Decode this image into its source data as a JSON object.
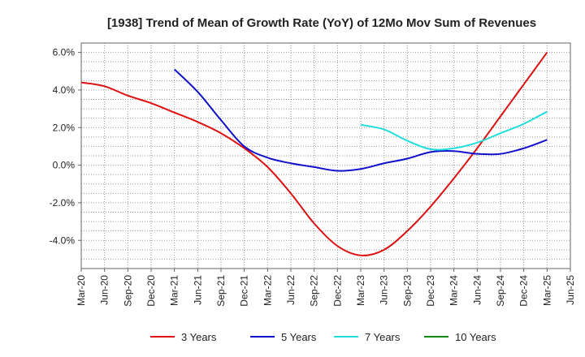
{
  "chart_data": {
    "type": "line",
    "title": "[1938]  Trend of Mean of Growth Rate (YoY) of 12Mo Mov Sum of Revenues",
    "xlabel": "",
    "ylabel": "",
    "ylim": [
      -5.5,
      6.5
    ],
    "y_ticks": [
      -4.0,
      -2.0,
      0.0,
      2.0,
      4.0,
      6.0
    ],
    "y_tick_labels": [
      "-4.0%",
      "-2.0%",
      "0.0%",
      "2.0%",
      "4.0%",
      "6.0%"
    ],
    "x_ticks": [
      "Mar-20",
      "Jun-20",
      "Sep-20",
      "Dec-20",
      "Mar-21",
      "Jun-21",
      "Sep-21",
      "Dec-21",
      "Mar-22",
      "Jun-22",
      "Sep-22",
      "Dec-22",
      "Mar-23",
      "Jun-23",
      "Sep-23",
      "Dec-23",
      "Mar-24",
      "Jun-24",
      "Sep-24",
      "Dec-24",
      "Mar-25",
      "Jun-25"
    ],
    "grid": true,
    "legend_position": "bottom",
    "series": [
      {
        "name": "3 Years",
        "color": "#dd1111",
        "points": [
          [
            "Mar-20",
            4.4
          ],
          [
            "Jun-20",
            4.2
          ],
          [
            "Sep-20",
            3.7
          ],
          [
            "Dec-20",
            3.3
          ],
          [
            "Mar-21",
            2.8
          ],
          [
            "Jun-21",
            2.3
          ],
          [
            "Sep-21",
            1.7
          ],
          [
            "Dec-21",
            0.9
          ],
          [
            "Mar-22",
            -0.1
          ],
          [
            "Jun-22",
            -1.5
          ],
          [
            "Sep-22",
            -3.1
          ],
          [
            "Dec-22",
            -4.3
          ],
          [
            "Mar-23",
            -4.8
          ],
          [
            "Jun-23",
            -4.5
          ],
          [
            "Sep-23",
            -3.5
          ],
          [
            "Dec-23",
            -2.2
          ],
          [
            "Mar-24",
            -0.7
          ],
          [
            "Jun-24",
            0.9
          ],
          [
            "Sep-24",
            2.6
          ],
          [
            "Dec-24",
            4.3
          ],
          [
            "Mar-25",
            6.0
          ]
        ]
      },
      {
        "name": "5 Years",
        "color": "#1111cc",
        "points": [
          [
            "Mar-21",
            5.1
          ],
          [
            "Jun-21",
            3.9
          ],
          [
            "Sep-21",
            2.4
          ],
          [
            "Dec-21",
            1.0
          ],
          [
            "Mar-22",
            0.4
          ],
          [
            "Jun-22",
            0.1
          ],
          [
            "Sep-22",
            -0.1
          ],
          [
            "Dec-22",
            -0.3
          ],
          [
            "Mar-23",
            -0.2
          ],
          [
            "Jun-23",
            0.1
          ],
          [
            "Sep-23",
            0.35
          ],
          [
            "Dec-23",
            0.7
          ],
          [
            "Mar-24",
            0.75
          ],
          [
            "Jun-24",
            0.6
          ],
          [
            "Sep-24",
            0.6
          ],
          [
            "Dec-24",
            0.9
          ],
          [
            "Mar-25",
            1.35
          ]
        ]
      },
      {
        "name": "7 Years",
        "color": "#22dddd",
        "points": [
          [
            "Mar-23",
            2.15
          ],
          [
            "Jun-23",
            1.9
          ],
          [
            "Sep-23",
            1.3
          ],
          [
            "Dec-23",
            0.85
          ],
          [
            "Mar-24",
            0.9
          ],
          [
            "Jun-24",
            1.2
          ],
          [
            "Sep-24",
            1.7
          ],
          [
            "Dec-24",
            2.2
          ],
          [
            "Mar-25",
            2.85
          ]
        ]
      },
      {
        "name": "10 Years",
        "color": "#118811",
        "points": []
      }
    ]
  }
}
